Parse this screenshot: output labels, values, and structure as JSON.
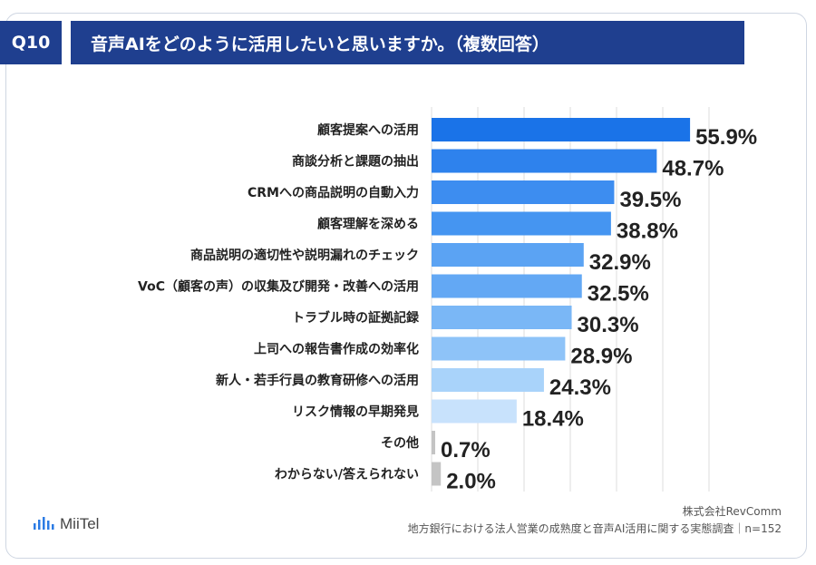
{
  "header": {
    "badge": "Q10",
    "title": "音声AIをどのように活用したいと思いますか。（複数回答）"
  },
  "chart_data": {
    "type": "bar",
    "orientation": "horizontal",
    "categories": [
      "顧客提案への活用",
      "商談分析と課題の抽出",
      "CRMへの商品説明の自動入力",
      "顧客理解を深める",
      "商品説明の適切性や説明漏れのチェック",
      "VoC（顧客の声）の収集及び開発・改善への活用",
      "トラブル時の証拠記録",
      "上司への報告書作成の効率化",
      "新人・若手行員の教育研修への活用",
      "リスク情報の早期発見",
      "その他",
      "わからない/答えられない"
    ],
    "values": [
      55.9,
      48.7,
      39.5,
      38.8,
      32.9,
      32.5,
      30.3,
      28.9,
      24.3,
      18.4,
      0.7,
      2.0
    ],
    "value_labels": [
      "55.9%",
      "48.7%",
      "39.5%",
      "38.8%",
      "32.9%",
      "32.5%",
      "30.3%",
      "28.9%",
      "24.3%",
      "18.4%",
      "0.7%",
      "2.0%"
    ],
    "bar_colors": [
      "#1a73e8",
      "#2e82ed",
      "#3d8df0",
      "#4595f1",
      "#5ba3f3",
      "#63a8f4",
      "#7ab7f6",
      "#8ec3f8",
      "#a9d3fa",
      "#c8e2fc",
      "#c4c4c4",
      "#c4c4c4"
    ],
    "xlim": [
      0,
      60
    ],
    "grid": true
  },
  "footer": {
    "company": "株式会社RevComm",
    "note": "地方銀行における法人営業の成熟度と音声AI活用に関する実態調査｜n=152",
    "logo_text": "MiiTel"
  }
}
